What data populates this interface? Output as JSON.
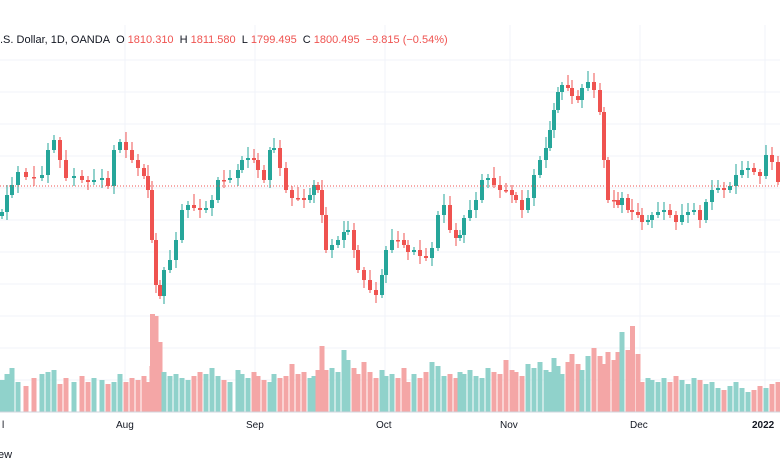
{
  "header": {
    "symbol": ".S. Dollar, 1D, OANDA",
    "o_label": "O",
    "o_value": "1810.310",
    "h_label": "H",
    "h_value": "1811.580",
    "l_label": "L",
    "l_value": "1799.495",
    "c_label": "C",
    "c_value": "1800.495",
    "change": "−9.815 (−0.54%)"
  },
  "footer": {
    "text": "ew"
  },
  "colors": {
    "up": "#26a69a",
    "down": "#ef5350",
    "vol_up": "#90d2cb",
    "vol_down": "#f4a6a6",
    "grid": "#f0f3fa",
    "dotted": "#ef5350"
  },
  "chart_data": {
    "type": "candlestick",
    "x_ticks": [
      "Aug",
      "Sep",
      "Oct",
      "Nov",
      "Dec",
      "2022"
    ],
    "left_tick": "l",
    "candles_pattern": "approximate-from-image"
  }
}
